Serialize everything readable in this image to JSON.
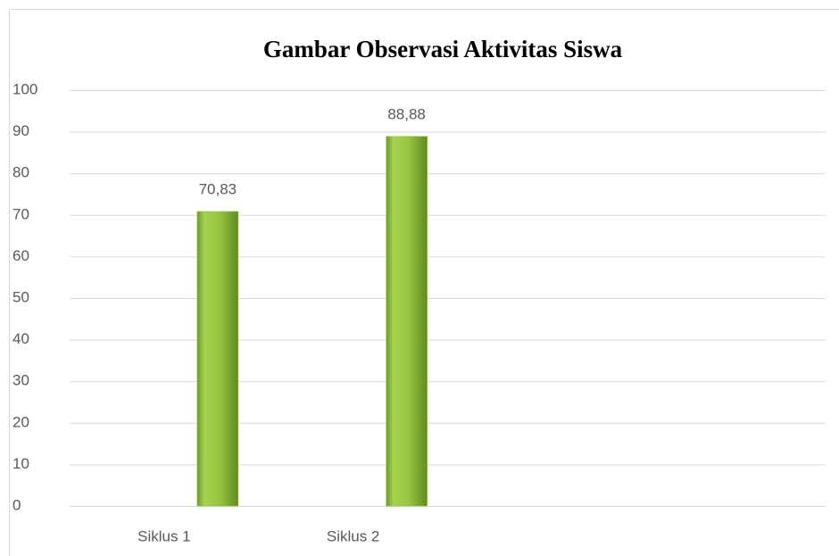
{
  "chart_data": {
    "type": "bar",
    "title": "Gambar Observasi Aktivitas Siswa",
    "categories": [
      "Siklus 1",
      "Siklus 2",
      null,
      null
    ],
    "values": [
      70.83,
      88.88,
      null,
      null
    ],
    "value_labels": [
      "70,83",
      "88,88",
      null,
      null
    ],
    "color": "#92c83e",
    "ylim": [
      0,
      100
    ],
    "yticks": [
      0,
      10,
      20,
      30,
      40,
      50,
      60,
      70,
      80,
      90,
      100
    ],
    "grid": true
  }
}
